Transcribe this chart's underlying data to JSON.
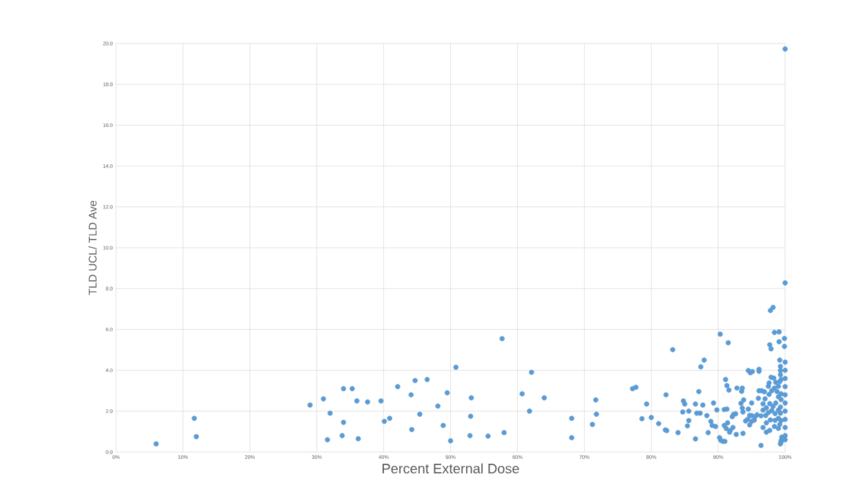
{
  "chart_data": {
    "type": "scatter",
    "xlabel": "Percent External Dose",
    "ylabel": "TLD UCL/ TLD Ave",
    "color": "#5b9bd5",
    "marker": "circle",
    "grid": true,
    "xlim": [
      0,
      100
    ],
    "ylim": [
      0,
      20
    ],
    "xticks": [
      {
        "value": 0,
        "label": "0%"
      },
      {
        "value": 10,
        "label": "10%"
      },
      {
        "value": 20,
        "label": "20%"
      },
      {
        "value": 30,
        "label": "30%"
      },
      {
        "value": 40,
        "label": "40%"
      },
      {
        "value": 50,
        "label": "50%"
      },
      {
        "value": 60,
        "label": "60%"
      },
      {
        "value": 70,
        "label": "70%"
      },
      {
        "value": 80,
        "label": "80%"
      },
      {
        "value": 90,
        "label": "90%"
      },
      {
        "value": 100,
        "label": "100%"
      }
    ],
    "yticks": [
      {
        "value": 0,
        "label": "0.0"
      },
      {
        "value": 2,
        "label": "2.0"
      },
      {
        "value": 4,
        "label": "4.0"
      },
      {
        "value": 6,
        "label": "6.0"
      },
      {
        "value": 8,
        "label": "8.0"
      },
      {
        "value": 10,
        "label": "10.0"
      },
      {
        "value": 12,
        "label": "12.0"
      },
      {
        "value": 14,
        "label": "14.0"
      },
      {
        "value": 16,
        "label": "16.0"
      },
      {
        "value": 18,
        "label": "18.0"
      },
      {
        "value": 20,
        "label": "20.0"
      }
    ],
    "x": [
      6,
      11.7,
      12,
      29,
      31,
      31.6,
      32,
      34,
      34,
      33.8,
      35.3,
      36,
      36.2,
      37.6,
      39.6,
      40.1,
      40.9,
      42.1,
      44.1,
      44.2,
      44.7,
      45.4,
      46.5,
      48.1,
      48.9,
      49.5,
      50,
      50.8,
      53,
      53.1,
      52.9,
      55.6,
      57.7,
      58,
      60.7,
      61.8,
      62.1,
      64,
      68.1,
      68.1,
      71.2,
      71.7,
      71.8,
      77.2,
      77.7,
      79.3,
      78.6,
      80.0,
      81.1,
      82.2,
      82.1,
      82.3,
      83.2,
      84.0,
      84.8,
      85.0,
      84.7,
      85.6,
      85.6,
      85.4,
      86.6,
      86.6,
      86.8,
      87.3,
      87.1,
      87.4,
      87.9,
      87.7,
      88.3,
      88.5,
      88.9,
      89.1,
      89.6,
      89.3,
      89.8,
      90.3,
      90.2,
      90.4,
      90.7,
      91.0,
      91.1,
      91.3,
      91.6,
      91.5,
      90.9,
      91.3,
      90.9,
      91.4,
      91.2,
      91.7,
      91.8,
      92.1,
      92.3,
      92.6,
      92.2,
      92.7,
      92.8,
      93.6,
      93.5,
      93.4,
      93.8,
      93.6,
      93.7,
      93.7,
      94.5,
      94.8,
      95.1,
      96.1,
      96.1,
      96.4,
      97.8,
      98.2,
      98.4,
      99.1,
      97.7,
      97.9,
      99.1,
      99.9,
      99.9,
      100,
      100,
      94.1,
      94.4,
      94.7,
      95.0,
      95.5,
      95.8,
      95.4,
      95.0,
      94.7,
      94.5,
      95.0,
      96.0,
      96.1,
      96.5,
      96.9,
      97.0,
      97.6,
      97.9,
      97.6,
      98.3,
      98.6,
      98.4,
      98.0,
      98.8,
      99.0,
      98.6,
      98.2,
      97.7,
      97.2,
      96.7,
      96.4,
      97.1,
      97.5,
      98.0,
      98.5,
      99.0,
      99.3,
      99.3,
      99.0,
      98.5,
      97.8,
      97.2,
      96.7,
      97.2,
      97.7,
      98.4,
      99.0,
      99.2,
      96.7,
      97.5,
      99.0,
      99.2,
      99.3,
      99.3,
      99.3,
      99.2,
      99.4,
      99.4,
      99.4,
      99.4,
      99.5,
      99.4,
      99.3,
      99.4,
      100,
      100,
      100,
      100,
      100,
      100,
      100,
      100,
      100,
      100,
      100
    ],
    "values": [
      0.4,
      1.65,
      0.75,
      2.3,
      2.6,
      0.6,
      1.9,
      3.1,
      1.45,
      0.8,
      3.1,
      2.5,
      0.65,
      2.45,
      2.5,
      1.5,
      1.65,
      3.2,
      2.8,
      1.1,
      3.5,
      1.85,
      3.55,
      2.25,
      1.3,
      2.9,
      0.55,
      4.15,
      1.75,
      2.65,
      0.8,
      0.78,
      5.55,
      0.95,
      2.85,
      2.0,
      3.9,
      2.65,
      1.65,
      0.7,
      1.35,
      2.55,
      1.85,
      3.1,
      3.17,
      2.35,
      1.63,
      1.69,
      1.39,
      2.8,
      1.08,
      1.05,
      5.01,
      0.95,
      2.5,
      2.35,
      1.96,
      2.0,
      1.54,
      1.28,
      0.64,
      2.35,
      1.9,
      1.9,
      2.96,
      4.17,
      4.5,
      2.3,
      1.78,
      0.95,
      1.5,
      1.3,
      1.25,
      2.4,
      2.06,
      5.77,
      0.7,
      0.57,
      0.52,
      0.52,
      3.55,
      3.25,
      3.03,
      5.35,
      2.08,
      2.1,
      1.3,
      1.43,
      1.15,
      0.97,
      1.05,
      1.73,
      1.84,
      1.87,
      1.2,
      0.86,
      3.13,
      3.13,
      2.97,
      2.38,
      2.55,
      2.15,
      1.96,
      0.91,
      3.99,
      3.88,
      3.94,
      4.05,
      3.95,
      0.32,
      6.93,
      7.08,
      5.85,
      5.88,
      5.25,
      5.05,
      5.4,
      5.56,
      5.17,
      8.28,
      19.73,
      1.52,
      1.6,
      1.79,
      1.78,
      1.73,
      1.82,
      1.56,
      1.5,
      1.33,
      2.1,
      2.4,
      2.63,
      3.0,
      3.0,
      2.95,
      2.6,
      2.82,
      3.66,
      3.38,
      3.62,
      3.41,
      3.13,
      3.0,
      2.96,
      2.7,
      2.4,
      2.23,
      2.37,
      2.16,
      2.05,
      1.77,
      1.79,
      1.93,
      2.03,
      1.88,
      2.05,
      2.2,
      1.9,
      1.65,
      1.55,
      1.57,
      1.43,
      1.2,
      0.97,
      1.06,
      1.25,
      1.16,
      1.35,
      2.36,
      3.22,
      3.22,
      3.45,
      3.78,
      3.99,
      4.19,
      4.5,
      3.55,
      2.85,
      2.57,
      1.54,
      0.73,
      0.56,
      0.4,
      0.49,
      4.4,
      4.0,
      3.6,
      3.2,
      2.8,
      2.4,
      2.0,
      1.6,
      1.2,
      0.8,
      0.6
    ]
  }
}
